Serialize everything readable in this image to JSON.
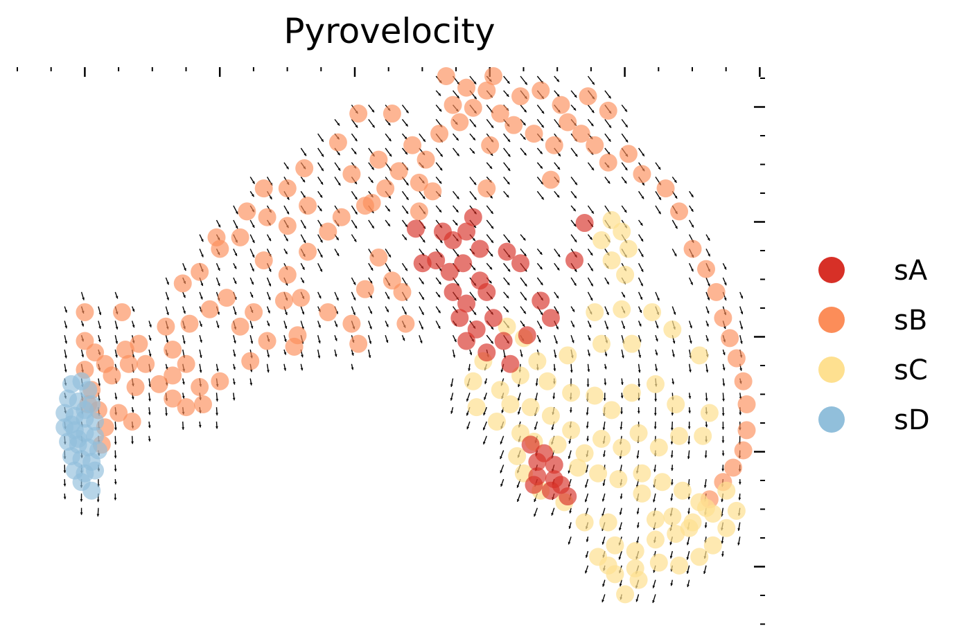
{
  "chart_data": {
    "type": "scatter",
    "title": "Pyrovelocity",
    "xlabel": "",
    "ylabel": "",
    "xlim": [
      0,
      22
    ],
    "ylim": [
      0,
      19
    ],
    "grid": false,
    "legend_position": "right",
    "series": [
      {
        "name": "sA",
        "color": "#d73027",
        "alpha": 0.65,
        "points": [
          [
            12.6,
            13.6
          ],
          [
            12.9,
            13.3
          ],
          [
            13.3,
            13.6
          ],
          [
            13.7,
            13.0
          ],
          [
            12.4,
            12.6
          ],
          [
            12.8,
            12.2
          ],
          [
            13.2,
            12.5
          ],
          [
            13.7,
            11.9
          ],
          [
            12.9,
            11.5
          ],
          [
            13.3,
            11.1
          ],
          [
            13.9,
            11.5
          ],
          [
            13.1,
            10.6
          ],
          [
            13.6,
            10.2
          ],
          [
            14.1,
            10.6
          ],
          [
            13.3,
            9.8
          ],
          [
            13.9,
            9.4
          ],
          [
            14.4,
            9.8
          ],
          [
            14.6,
            9.0
          ],
          [
            15.1,
            10.0
          ],
          [
            15.5,
            11.2
          ],
          [
            14.5,
            12.9
          ],
          [
            14.9,
            12.5
          ],
          [
            13.5,
            14.1
          ],
          [
            11.8,
            13.7
          ],
          [
            12.0,
            12.5
          ],
          [
            16.8,
            13.9
          ],
          [
            16.5,
            12.6
          ],
          [
            15.8,
            10.6
          ],
          [
            15.2,
            6.2
          ],
          [
            15.6,
            5.9
          ],
          [
            15.9,
            5.5
          ],
          [
            15.4,
            5.1
          ],
          [
            15.8,
            4.6
          ],
          [
            16.3,
            4.4
          ],
          [
            15.3,
            4.8
          ],
          [
            15.9,
            5.0
          ],
          [
            15.4,
            5.6
          ],
          [
            16.1,
            4.8
          ]
        ]
      },
      {
        "name": "sB",
        "color": "#fc8d59",
        "alpha": 0.65,
        "points": [
          [
            2.0,
            10.8
          ],
          [
            3.1,
            10.8
          ],
          [
            2.3,
            9.4
          ],
          [
            2.6,
            9.0
          ],
          [
            3.2,
            9.5
          ],
          [
            3.6,
            9.7
          ],
          [
            4.4,
            10.3
          ],
          [
            4.6,
            9.5
          ],
          [
            5.1,
            10.4
          ],
          [
            5.7,
            10.9
          ],
          [
            6.2,
            11.3
          ],
          [
            6.6,
            10.3
          ],
          [
            7.0,
            10.8
          ],
          [
            4.9,
            11.8
          ],
          [
            5.4,
            12.2
          ],
          [
            6.0,
            13.0
          ],
          [
            6.6,
            13.4
          ],
          [
            7.3,
            12.6
          ],
          [
            8.0,
            12.1
          ],
          [
            8.4,
            11.3
          ],
          [
            9.2,
            10.8
          ],
          [
            9.9,
            10.4
          ],
          [
            10.3,
            11.6
          ],
          [
            11.1,
            11.9
          ],
          [
            8.6,
            12.9
          ],
          [
            9.2,
            13.6
          ],
          [
            8.0,
            13.8
          ],
          [
            8.6,
            14.5
          ],
          [
            9.6,
            14.1
          ],
          [
            10.3,
            14.5
          ],
          [
            10.9,
            15.1
          ],
          [
            11.3,
            15.7
          ],
          [
            11.9,
            15.3
          ],
          [
            12.1,
            16.1
          ],
          [
            11.7,
            16.6
          ],
          [
            12.5,
            17.0
          ],
          [
            13.1,
            17.4
          ],
          [
            13.5,
            17.9
          ],
          [
            13.9,
            18.5
          ],
          [
            14.3,
            17.7
          ],
          [
            14.7,
            17.3
          ],
          [
            15.3,
            17.0
          ],
          [
            15.9,
            16.6
          ],
          [
            16.3,
            17.4
          ],
          [
            16.7,
            17.0
          ],
          [
            17.1,
            16.6
          ],
          [
            17.5,
            17.8
          ],
          [
            16.9,
            18.3
          ],
          [
            16.1,
            18.0
          ],
          [
            15.5,
            18.5
          ],
          [
            14.9,
            18.3
          ],
          [
            14.1,
            19.0
          ],
          [
            13.3,
            18.6
          ],
          [
            12.7,
            19.0
          ],
          [
            12.9,
            18.0
          ],
          [
            11.1,
            17.7
          ],
          [
            10.1,
            17.7
          ],
          [
            9.5,
            16.7
          ],
          [
            8.5,
            15.8
          ],
          [
            8.0,
            15.1
          ],
          [
            7.4,
            14.1
          ],
          [
            6.8,
            14.3
          ],
          [
            7.3,
            15.1
          ],
          [
            5.9,
            13.4
          ],
          [
            9.9,
            15.6
          ],
          [
            10.7,
            16.1
          ],
          [
            10.5,
            14.6
          ],
          [
            11.9,
            14.3
          ],
          [
            12.3,
            15.0
          ],
          [
            17.5,
            16.0
          ],
          [
            18.1,
            16.3
          ],
          [
            18.5,
            15.6
          ],
          [
            19.2,
            15.1
          ],
          [
            19.6,
            14.3
          ],
          [
            20.0,
            13.0
          ],
          [
            20.4,
            12.3
          ],
          [
            20.7,
            11.5
          ],
          [
            20.9,
            10.6
          ],
          [
            21.1,
            9.9
          ],
          [
            21.3,
            9.2
          ],
          [
            21.5,
            8.4
          ],
          [
            21.6,
            7.6
          ],
          [
            21.6,
            6.7
          ],
          [
            21.5,
            6.0
          ],
          [
            21.2,
            5.4
          ],
          [
            20.9,
            4.9
          ],
          [
            20.5,
            4.3
          ],
          [
            2.0,
            9.8
          ],
          [
            2.0,
            8.8
          ],
          [
            2.2,
            8.1
          ],
          [
            2.4,
            7.4
          ],
          [
            2.6,
            6.8
          ],
          [
            2.1,
            7.6
          ],
          [
            2.5,
            6.2
          ],
          [
            3.0,
            7.3
          ],
          [
            3.4,
            7.0
          ],
          [
            3.5,
            8.2
          ],
          [
            3.8,
            9.0
          ],
          [
            4.2,
            8.3
          ],
          [
            4.6,
            8.6
          ],
          [
            5.0,
            9.0
          ],
          [
            5.4,
            8.2
          ],
          [
            2.8,
            8.6
          ],
          [
            3.3,
            9.0
          ],
          [
            4.6,
            7.8
          ],
          [
            5.0,
            7.5
          ],
          [
            5.5,
            7.6
          ],
          [
            6.0,
            8.4
          ],
          [
            7.9,
            11.2
          ],
          [
            8.3,
            10.0
          ],
          [
            7.4,
            9.8
          ],
          [
            8.2,
            9.6
          ],
          [
            6.9,
            9.1
          ],
          [
            10.1,
            9.7
          ],
          [
            11.5,
            10.4
          ],
          [
            11.4,
            11.5
          ],
          [
            10.7,
            12.7
          ],
          [
            13.9,
            15.1
          ],
          [
            15.8,
            15.4
          ],
          [
            14.0,
            16.6
          ]
        ]
      },
      {
        "name": "sC",
        "color": "#fee090",
        "alpha": 0.7,
        "points": [
          [
            17.3,
            13.3
          ],
          [
            17.6,
            14.0
          ],
          [
            17.9,
            13.6
          ],
          [
            18.1,
            13.0
          ],
          [
            17.6,
            12.6
          ],
          [
            18.0,
            12.1
          ],
          [
            17.1,
            10.8
          ],
          [
            17.9,
            10.9
          ],
          [
            18.8,
            10.8
          ],
          [
            19.4,
            10.2
          ],
          [
            18.2,
            9.7
          ],
          [
            17.3,
            9.7
          ],
          [
            16.3,
            9.3
          ],
          [
            15.4,
            9.1
          ],
          [
            15.0,
            9.9
          ],
          [
            14.5,
            10.3
          ],
          [
            13.8,
            9.1
          ],
          [
            13.5,
            8.4
          ],
          [
            13.6,
            7.5
          ],
          [
            14.3,
            8.1
          ],
          [
            14.9,
            8.6
          ],
          [
            15.7,
            8.4
          ],
          [
            16.4,
            8.0
          ],
          [
            17.1,
            7.9
          ],
          [
            17.6,
            7.4
          ],
          [
            18.2,
            8.0
          ],
          [
            18.9,
            8.3
          ],
          [
            19.5,
            7.6
          ],
          [
            20.2,
            9.3
          ],
          [
            20.5,
            7.3
          ],
          [
            20.3,
            6.5
          ],
          [
            19.6,
            6.5
          ],
          [
            19.0,
            6.1
          ],
          [
            18.4,
            6.6
          ],
          [
            17.9,
            6.1
          ],
          [
            17.3,
            6.4
          ],
          [
            16.8,
            5.9
          ],
          [
            16.4,
            6.7
          ],
          [
            15.8,
            7.2
          ],
          [
            15.2,
            7.5
          ],
          [
            14.6,
            7.6
          ],
          [
            14.2,
            7.0
          ],
          [
            14.9,
            6.6
          ],
          [
            16.0,
            6.2
          ],
          [
            16.6,
            5.4
          ],
          [
            17.2,
            5.2
          ],
          [
            17.8,
            5.0
          ],
          [
            18.5,
            5.2
          ],
          [
            19.1,
            4.9
          ],
          [
            19.7,
            4.6
          ],
          [
            20.2,
            4.2
          ],
          [
            20.6,
            3.8
          ],
          [
            20.0,
            3.5
          ],
          [
            19.5,
            3.1
          ],
          [
            18.9,
            2.9
          ],
          [
            18.3,
            2.5
          ],
          [
            17.7,
            2.7
          ],
          [
            17.2,
            2.3
          ],
          [
            17.7,
            1.7
          ],
          [
            18.3,
            1.9
          ],
          [
            19.0,
            2.1
          ],
          [
            19.6,
            2.0
          ],
          [
            20.2,
            2.3
          ],
          [
            20.6,
            2.7
          ],
          [
            21.0,
            3.3
          ],
          [
            21.3,
            3.9
          ],
          [
            21.0,
            4.6
          ],
          [
            20.4,
            4.0
          ],
          [
            19.9,
            3.3
          ],
          [
            19.4,
            3.7
          ],
          [
            18.9,
            3.6
          ],
          [
            18.5,
            4.5
          ],
          [
            17.5,
            3.5
          ],
          [
            16.8,
            3.5
          ],
          [
            16.2,
            4.2
          ],
          [
            15.5,
            4.6
          ],
          [
            15.0,
            5.2
          ],
          [
            14.8,
            5.8
          ],
          [
            15.3,
            6.3
          ],
          [
            17.5,
            2.0
          ],
          [
            18.0,
            1.0
          ],
          [
            18.4,
            1.5
          ]
        ]
      },
      {
        "name": "sD",
        "color": "#91bfdb",
        "alpha": 0.65,
        "points": [
          [
            1.6,
            8.3
          ],
          [
            1.9,
            8.4
          ],
          [
            2.1,
            8.1
          ],
          [
            1.5,
            7.8
          ],
          [
            1.8,
            7.7
          ],
          [
            2.2,
            7.6
          ],
          [
            1.4,
            7.3
          ],
          [
            1.7,
            7.2
          ],
          [
            2.0,
            7.1
          ],
          [
            2.3,
            7.0
          ],
          [
            1.4,
            6.8
          ],
          [
            1.7,
            6.7
          ],
          [
            2.0,
            6.6
          ],
          [
            2.3,
            6.5
          ],
          [
            1.5,
            6.3
          ],
          [
            1.8,
            6.2
          ],
          [
            2.1,
            6.1
          ],
          [
            2.4,
            6.0
          ],
          [
            1.6,
            5.8
          ],
          [
            1.9,
            5.7
          ],
          [
            2.2,
            5.6
          ],
          [
            1.7,
            5.3
          ],
          [
            2.0,
            5.2
          ],
          [
            2.3,
            5.3
          ],
          [
            1.9,
            4.9
          ],
          [
            2.2,
            4.6
          ],
          [
            1.6,
            6.9
          ],
          [
            2.0,
            7.4
          ],
          [
            1.8,
            6.4
          ]
        ]
      }
    ],
    "legend": [
      {
        "label": "sA",
        "color": "#d73027"
      },
      {
        "label": "sB",
        "color": "#fc8d59"
      },
      {
        "label": "sC",
        "color": "#fee090"
      },
      {
        "label": "sD",
        "color": "#91bfdb"
      }
    ],
    "velocity_arrows": true
  }
}
